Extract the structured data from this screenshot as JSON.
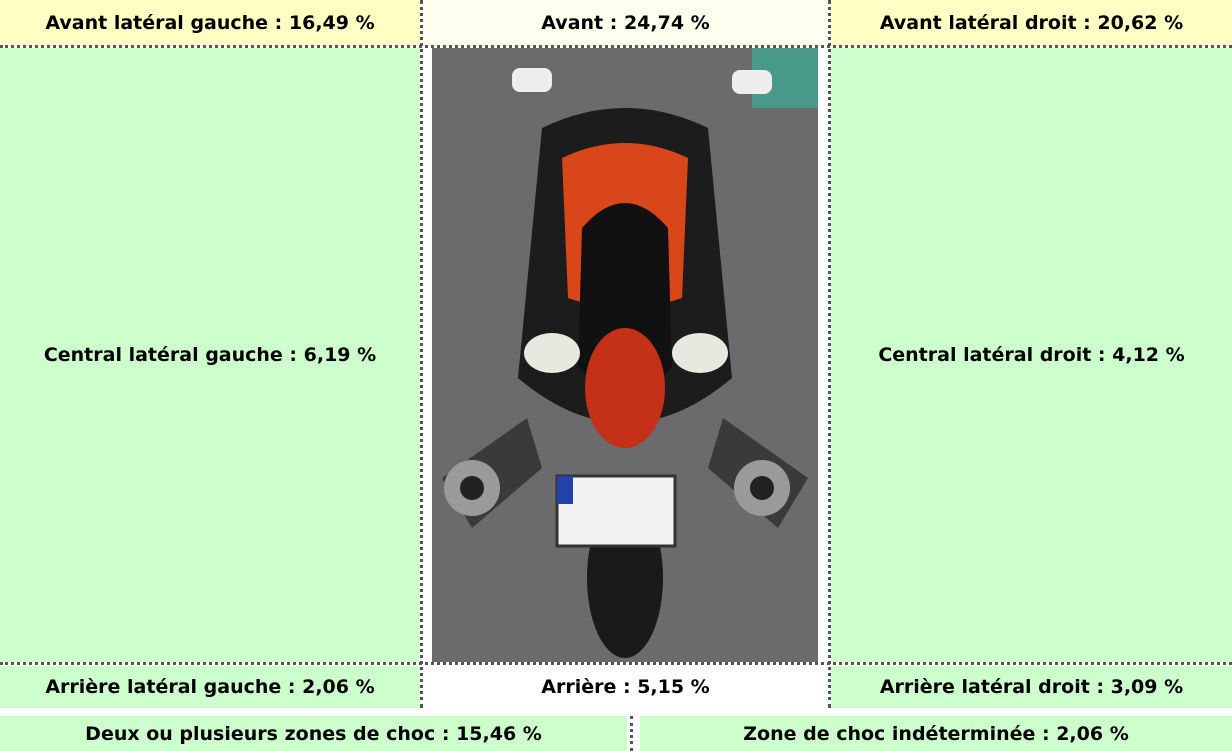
{
  "zones": {
    "front_left": "Avant latéral gauche : 16,49 %",
    "front": "Avant : 24,74 %",
    "front_right": "Avant latéral droit : 20,62 %",
    "center_left": "Central latéral gauche : 6,19 %",
    "center_right": "Central latéral droit : 4,12 %",
    "rear_left": "Arrière latéral gauche : 2,06 %",
    "rear": "Arrière : 5,15 %",
    "rear_right": "Arrière latéral droit : 3,09 %",
    "multiple": "Deux ou plusieurs zones de choc : 15,46 %",
    "unknown": "Zone de choc indéterminée : 2,06 %"
  }
}
